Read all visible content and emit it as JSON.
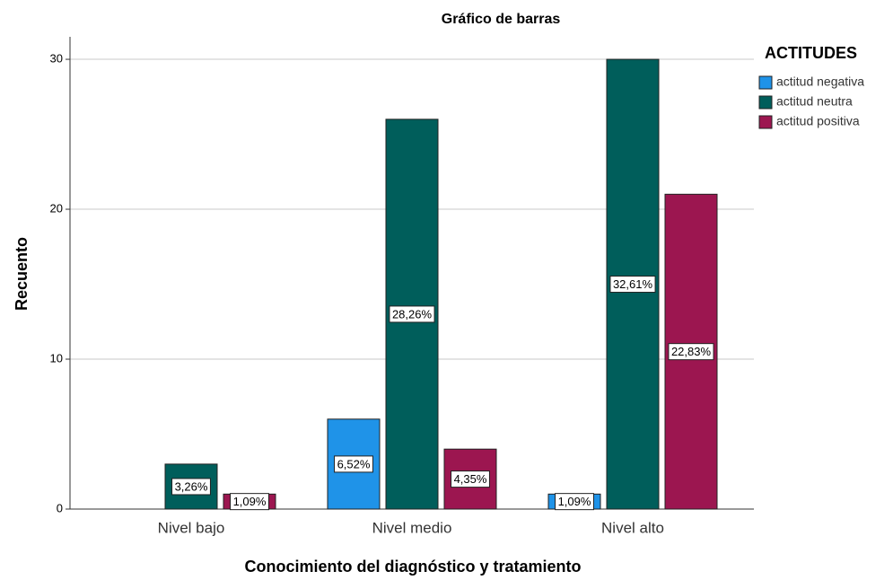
{
  "chart_data": {
    "type": "bar",
    "title": "Gráfico de barras",
    "x_label": "Conocimiento del diagnóstico y tratamiento",
    "y_label": "Recuento",
    "legend_title": "ACTITUDES",
    "categories": [
      "Nivel bajo",
      "Nivel medio",
      "Nivel alto"
    ],
    "series": [
      {
        "name": "actitud negativa",
        "color": "#1f93e8",
        "values": [
          0,
          6,
          1
        ],
        "labels": [
          null,
          "6,52%",
          "1,09%"
        ]
      },
      {
        "name": "actitud neutra",
        "color": "#005e5b",
        "values": [
          3,
          26,
          30
        ],
        "labels": [
          "3,26%",
          "28,26%",
          "32,61%"
        ]
      },
      {
        "name": "actitud positiva",
        "color": "#9c1650",
        "values": [
          1,
          4,
          21
        ],
        "labels": [
          "1,09%",
          "4,35%",
          "22,83%"
        ]
      }
    ],
    "ylim": [
      0,
      31.5
    ],
    "yticks": [
      0,
      10,
      20,
      30
    ],
    "grid": true,
    "legend": "upper right"
  }
}
